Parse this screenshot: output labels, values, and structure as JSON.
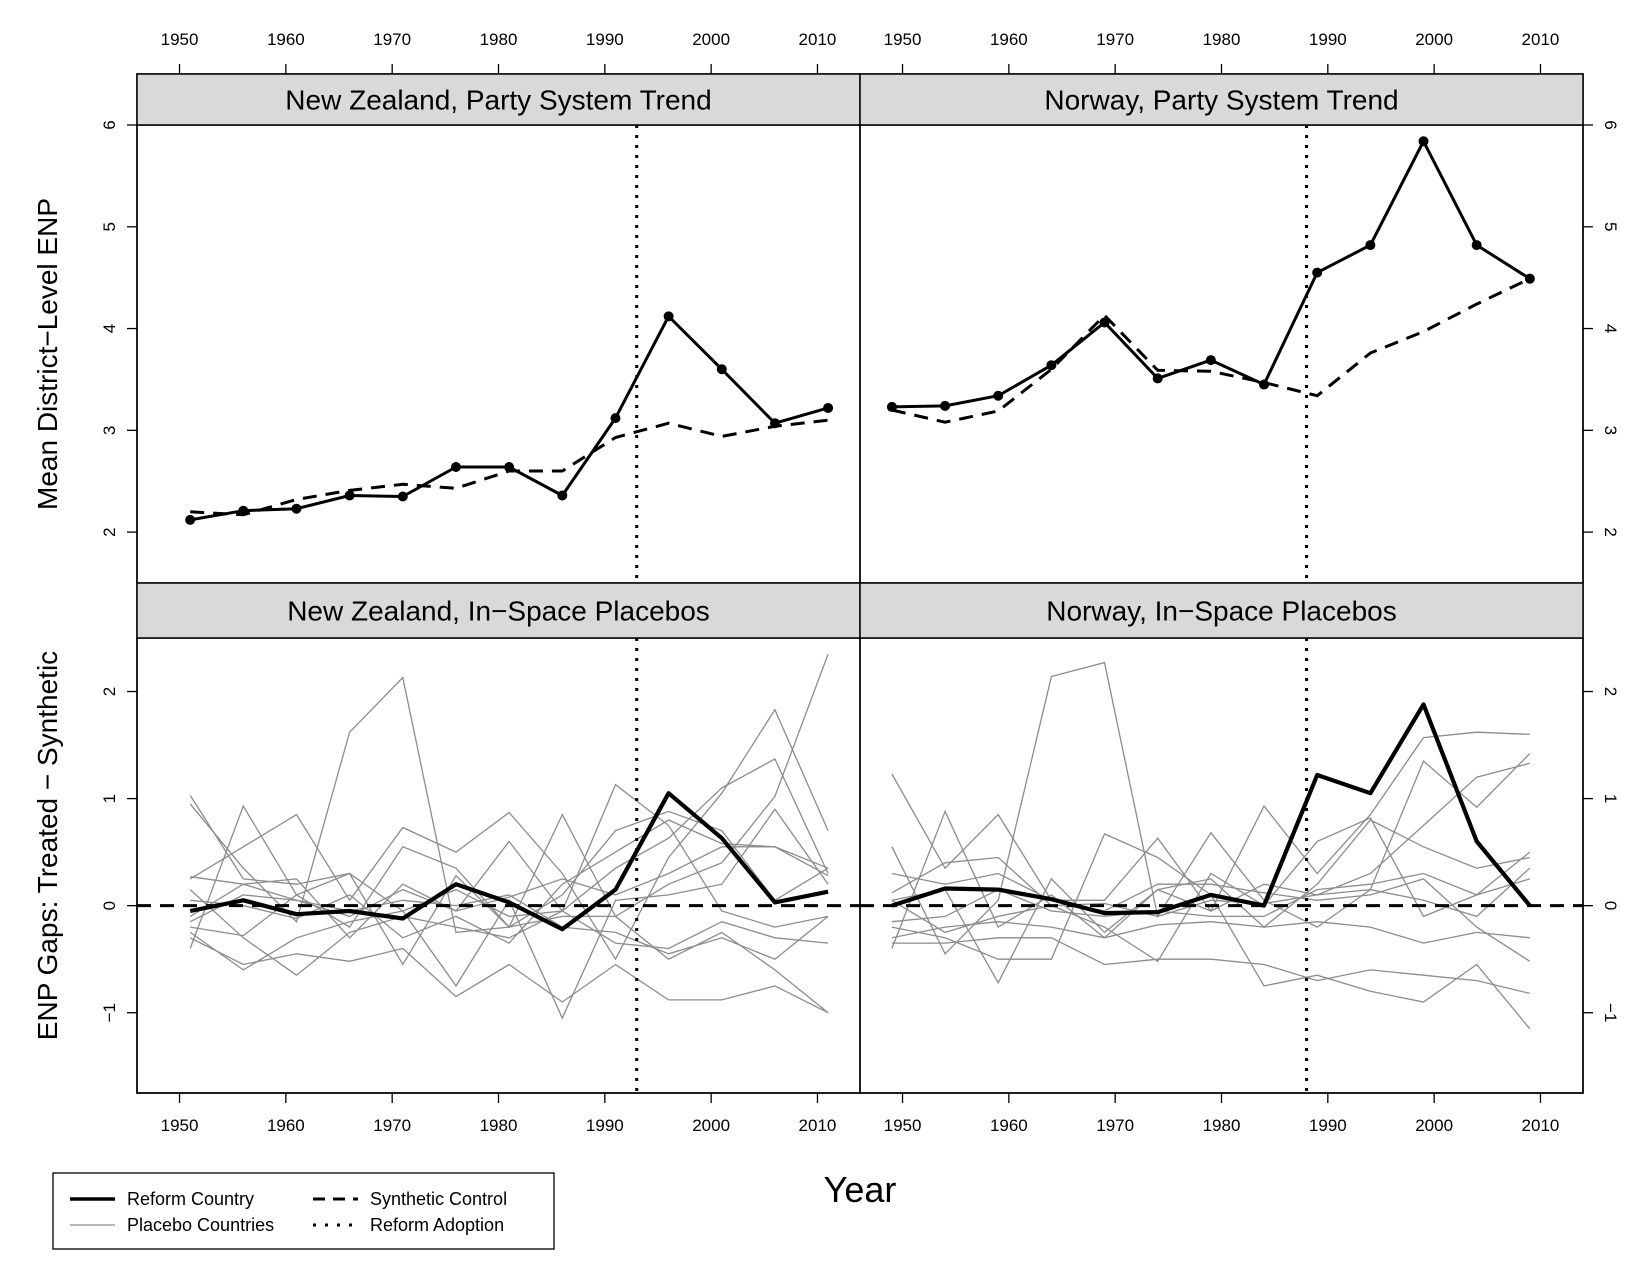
{
  "chart_data": {
    "type": "line",
    "xlabel": "Year",
    "x_ticks": [
      1950,
      1960,
      1970,
      1980,
      1990,
      2000,
      2010
    ],
    "legend": {
      "placement": "bottom-left",
      "entries": [
        {
          "label": "Reform Country",
          "style": "solid-thick"
        },
        {
          "label": "Synthetic Control",
          "style": "dashed"
        },
        {
          "label": "Placebo Countries",
          "style": "solid-thin-gray"
        },
        {
          "label": "Reform Adoption",
          "style": "dotted"
        }
      ]
    },
    "rows": [
      {
        "id": "trend",
        "ylabel": "Mean District−Level ENP",
        "ylim": [
          1.5,
          6
        ],
        "y_ticks": [
          2,
          3,
          4,
          5,
          6
        ]
      },
      {
        "id": "gaps",
        "ylabel": "ENP Gaps: Treated − Synthetic",
        "ylim": [
          -1.75,
          2.5
        ],
        "y_ticks": [
          -1,
          0,
          1,
          2
        ]
      }
    ],
    "columns": [
      {
        "id": "nz",
        "xlim": [
          1946,
          2014
        ],
        "reform_year": 1993
      },
      {
        "id": "no",
        "xlim": [
          1946,
          2014
        ],
        "reform_year": 1988
      }
    ],
    "panels": [
      {
        "title": "New Zealand, Party System Trend",
        "row": "trend",
        "col": "nz",
        "reform_year": 1993,
        "series": [
          {
            "name": "Reform Country",
            "x": [
              1951,
              1956,
              1961,
              1966,
              1971,
              1976,
              1981,
              1986,
              1991,
              1996,
              2001,
              2006,
              2011
            ],
            "values": [
              2.12,
              2.21,
              2.23,
              2.36,
              2.35,
              2.64,
              2.64,
              2.36,
              3.12,
              4.12,
              3.6,
              3.07,
              3.22
            ]
          },
          {
            "name": "Synthetic Control",
            "x": [
              1951,
              1956,
              1961,
              1966,
              1971,
              1976,
              1981,
              1986,
              1991,
              1996,
              2001,
              2006,
              2011
            ],
            "values": [
              2.2,
              2.17,
              2.32,
              2.41,
              2.47,
              2.43,
              2.6,
              2.6,
              2.93,
              3.07,
              2.94,
              3.04,
              3.1
            ]
          }
        ]
      },
      {
        "title": "Norway, Party System Trend",
        "row": "trend",
        "col": "no",
        "reform_year": 1988,
        "series": [
          {
            "name": "Reform Country",
            "x": [
              1949,
              1954,
              1959,
              1964,
              1969,
              1974,
              1979,
              1984,
              1989,
              1994,
              1999,
              2004,
              2009
            ],
            "values": [
              3.23,
              3.24,
              3.34,
              3.64,
              4.06,
              3.51,
              3.69,
              3.45,
              4.55,
              4.82,
              5.84,
              4.82,
              4.49
            ]
          },
          {
            "name": "Synthetic Control",
            "x": [
              1949,
              1954,
              1959,
              1964,
              1969,
              1974,
              1979,
              1984,
              1989,
              1994,
              1999,
              2004,
              2009
            ],
            "values": [
              3.2,
              3.08,
              3.19,
              3.6,
              4.13,
              3.59,
              3.58,
              3.47,
              3.34,
              3.76,
              3.97,
              4.24,
              4.49
            ]
          }
        ]
      },
      {
        "title": "New Zealand, In−Space Placebos",
        "row": "gaps",
        "col": "nz",
        "reform_year": 1993,
        "x": [
          1951,
          1956,
          1961,
          1966,
          1971,
          1976,
          1981,
          1986,
          1991,
          1996,
          2001,
          2006,
          2011
        ],
        "reform_gap": [
          -0.05,
          0.05,
          -0.08,
          -0.05,
          -0.12,
          0.2,
          0.03,
          -0.22,
          0.15,
          1.05,
          0.63,
          0.03,
          0.13
        ],
        "synthetic_gap": [
          0,
          0,
          0,
          0,
          0,
          0,
          0,
          0,
          0,
          0,
          0,
          0,
          0
        ],
        "placebos": [
          [
            1.03,
            0.25,
            0.2,
            0.3,
            -0.05,
            0.15,
            -0.1,
            -0.05,
            1.13,
            0.75,
            -0.05,
            -0.2,
            -0.1
          ],
          [
            0.95,
            0.35,
            -0.15,
            1.62,
            2.13,
            -0.25,
            -0.2,
            -0.1,
            -0.1,
            0.2,
            0.4,
            1.02,
            2.35
          ],
          [
            0.25,
            0.55,
            0.85,
            0.05,
            0.73,
            0.5,
            0.87,
            0.3,
            -0.5,
            0.45,
            1.05,
            1.83,
            0.7
          ],
          [
            -0.4,
            0.93,
            0.1,
            0.3,
            -0.55,
            0.28,
            -0.2,
            0.1,
            0.7,
            0.88,
            0.7,
            0.05,
            0.35
          ],
          [
            0.27,
            0.2,
            0.25,
            -0.3,
            0.2,
            -0.05,
            0.6,
            -0.05,
            0.35,
            0.63,
            1.1,
            1.37,
            0.3
          ],
          [
            -0.2,
            -0.28,
            0.1,
            -0.2,
            0.55,
            0.35,
            -0.2,
            0.85,
            -0.1,
            -0.5,
            -0.25,
            -0.6,
            -1.0
          ],
          [
            -0.3,
            -0.55,
            -0.45,
            -0.52,
            -0.4,
            -0.85,
            -0.55,
            -0.9,
            -0.55,
            -0.88,
            -0.88,
            -0.75,
            -1.0
          ],
          [
            0.15,
            -0.3,
            -0.65,
            -0.25,
            -0.1,
            -0.2,
            -0.3,
            -0.05,
            -0.35,
            -0.4,
            -0.15,
            -0.3,
            -0.35
          ],
          [
            -0.1,
            0.2,
            0.05,
            -0.1,
            0.15,
            -0.05,
            0.08,
            0.25,
            0.1,
            0.3,
            0.55,
            0.55,
            0.28
          ],
          [
            -0.25,
            -0.6,
            -0.3,
            -0.15,
            -0.05,
            -0.75,
            0.05,
            -1.05,
            0.05,
            0.1,
            0.2,
            0.9,
            0.2
          ],
          [
            0.05,
            0.0,
            -0.12,
            0.1,
            -0.3,
            -0.1,
            -0.35,
            0.2,
            0.5,
            0.8,
            0.58,
            0.55,
            0.35
          ],
          [
            -0.15,
            0.1,
            0.05,
            -0.05,
            0.05,
            0.0,
            0.1,
            -0.2,
            -0.25,
            -0.45,
            -0.3,
            -0.5,
            -0.1
          ]
        ]
      },
      {
        "title": "Norway, In−Space Placebos",
        "row": "gaps",
        "col": "no",
        "reform_year": 1988,
        "x": [
          1949,
          1954,
          1959,
          1964,
          1969,
          1974,
          1979,
          1984,
          1989,
          1994,
          1999,
          2004,
          2009
        ],
        "reform_gap": [
          0.0,
          0.16,
          0.15,
          0.06,
          -0.07,
          -0.06,
          0.1,
          0.0,
          1.22,
          1.05,
          1.88,
          0.6,
          0.0
        ],
        "synthetic_gap": [
          0,
          0,
          0,
          0,
          0,
          0,
          0,
          0,
          0,
          0,
          0,
          0,
          0
        ],
        "placebos": [
          [
            1.23,
            0.35,
            0.85,
            0.05,
            0.05,
            0.63,
            -0.05,
            0.93,
            0.3,
            0.85,
            1.57,
            1.62,
            1.6
          ],
          [
            0.55,
            -0.45,
            0.05,
            2.14,
            2.27,
            -0.1,
            0.68,
            0.05,
            -0.2,
            0.15,
            1.35,
            0.92,
            1.42
          ],
          [
            -0.4,
            0.88,
            -0.2,
            0.1,
            -0.3,
            0.15,
            -0.05,
            0.2,
            0.1,
            0.3,
            0.75,
            1.2,
            1.33
          ],
          [
            0.05,
            0.15,
            -0.72,
            0.25,
            -0.25,
            0.15,
            0.25,
            -0.2,
            0.2,
            0.8,
            0.55,
            0.35,
            0.45
          ],
          [
            -0.2,
            -0.3,
            -0.5,
            -0.5,
            0.67,
            0.45,
            0.1,
            -0.75,
            -0.65,
            -0.8,
            -0.9,
            -0.55,
            -1.15
          ],
          [
            -0.35,
            -0.35,
            -0.3,
            -0.3,
            -0.55,
            -0.5,
            -0.5,
            -0.55,
            -0.7,
            -0.6,
            -0.65,
            -0.7,
            -0.82
          ],
          [
            0.12,
            0.4,
            0.45,
            0.0,
            -0.2,
            -0.52,
            0.3,
            0.0,
            0.6,
            0.82,
            -0.1,
            0.1,
            0.5
          ],
          [
            -0.15,
            -0.1,
            0.15,
            -0.05,
            -0.1,
            -0.05,
            -0.1,
            -0.1,
            0.15,
            0.2,
            0.3,
            0.1,
            0.25
          ],
          [
            0.3,
            0.2,
            0.3,
            0.05,
            -0.05,
            0.2,
            0.2,
            0.12,
            0.05,
            0.1,
            0.25,
            -0.2,
            -0.52
          ],
          [
            -0.3,
            -0.2,
            -0.15,
            -0.2,
            -0.3,
            -0.18,
            -0.15,
            -0.2,
            -0.15,
            -0.2,
            -0.35,
            -0.25,
            -0.3
          ],
          [
            0.05,
            -0.25,
            -0.1,
            0.0,
            0.02,
            -0.1,
            0.05,
            0.02,
            0.1,
            0.15,
            0.05,
            -0.1,
            0.35
          ]
        ]
      }
    ]
  }
}
